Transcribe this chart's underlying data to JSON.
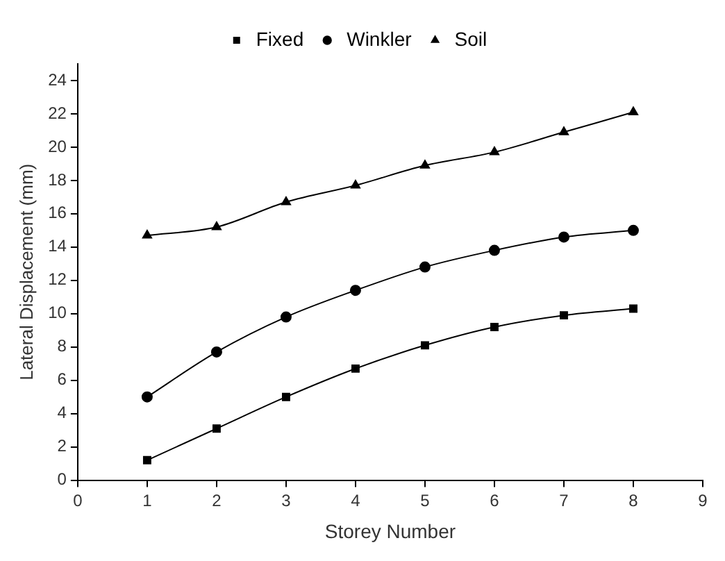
{
  "chart_data": {
    "type": "line",
    "xlabel": "Storey Number",
    "ylabel": "Lateral Displacement (mm)",
    "xlim": [
      0,
      9
    ],
    "xticks": [
      0,
      1,
      2,
      3,
      4,
      5,
      6,
      7,
      8,
      9
    ],
    "ylim": [
      0,
      25
    ],
    "yticks": [
      0,
      2,
      4,
      6,
      8,
      10,
      12,
      14,
      16,
      18,
      20,
      22,
      24
    ],
    "x": [
      1,
      2,
      3,
      4,
      5,
      6,
      7,
      8
    ],
    "grid": false,
    "legend": "top",
    "line_style": "solid",
    "series": [
      {
        "name": "Fixed",
        "color": "#000000",
        "marker": "square",
        "values": [
          1.2,
          3.1,
          5.0,
          6.7,
          8.1,
          9.2,
          9.9,
          10.3
        ]
      },
      {
        "name": "Winkler",
        "color": "#000000",
        "marker": "circle",
        "values": [
          5.0,
          7.7,
          9.8,
          11.4,
          12.8,
          13.8,
          14.6,
          15.0
        ]
      },
      {
        "name": "Soil",
        "color": "#000000",
        "marker": "triangle",
        "values": [
          14.7,
          15.2,
          16.7,
          17.7,
          18.9,
          19.7,
          20.9,
          22.1
        ]
      }
    ]
  }
}
